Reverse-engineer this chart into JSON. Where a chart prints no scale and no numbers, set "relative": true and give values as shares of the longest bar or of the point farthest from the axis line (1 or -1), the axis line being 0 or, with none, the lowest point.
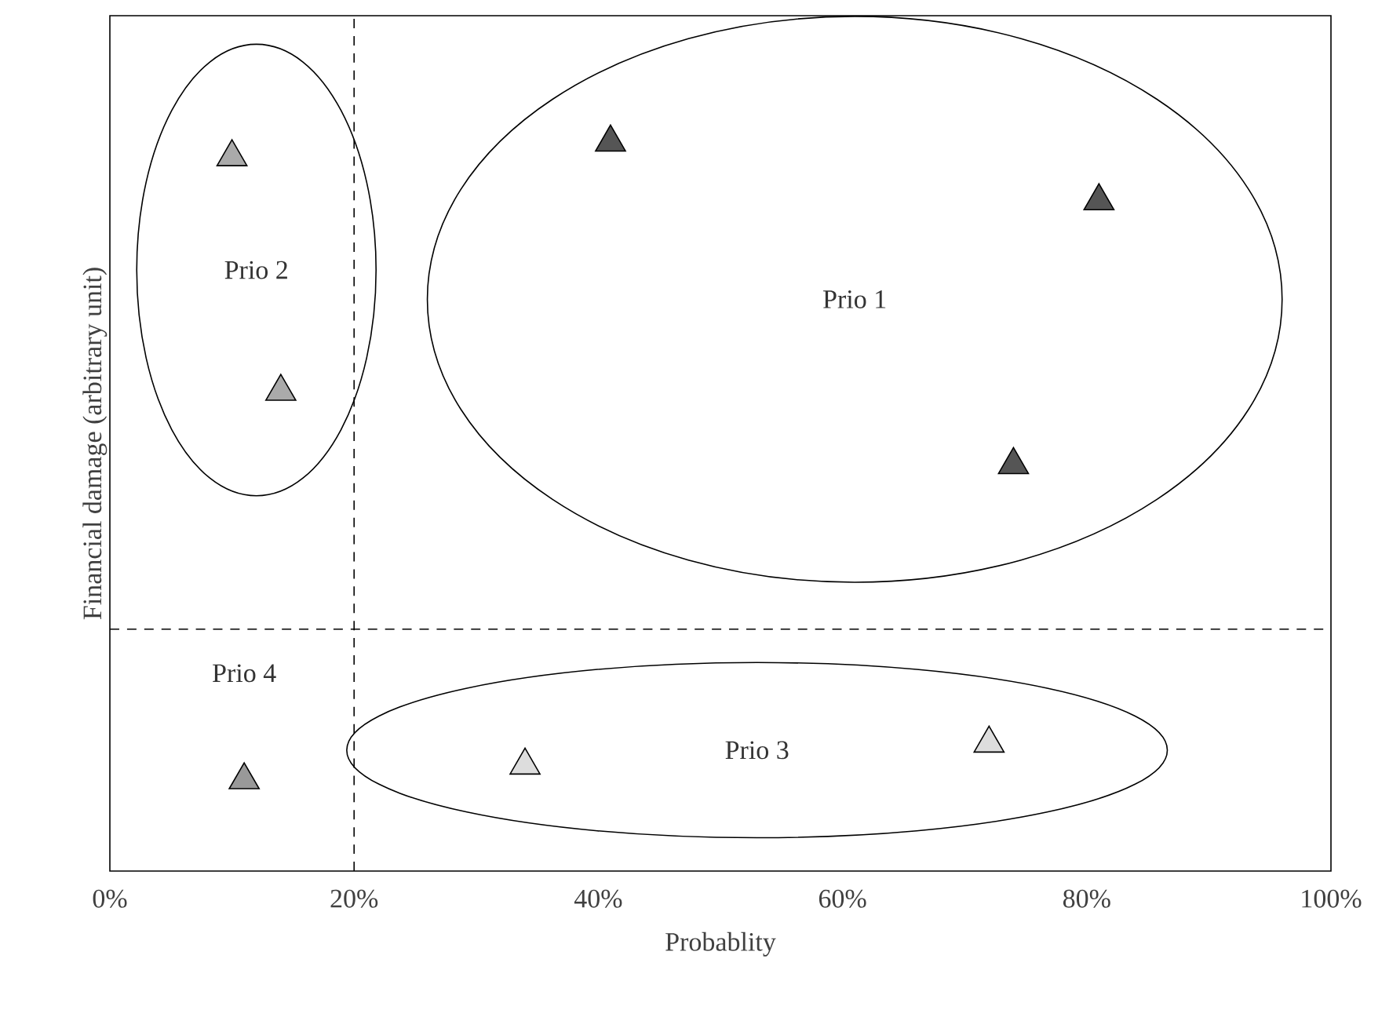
{
  "chart_data": {
    "type": "scatter",
    "xlabel": "Probablity",
    "ylabel": "Financial damage (arbitrary unit)",
    "xlim": [
      0,
      100
    ],
    "xticks": [
      {
        "value": 0,
        "label": "0%"
      },
      {
        "value": 20,
        "label": "20%"
      },
      {
        "value": 40,
        "label": "40%"
      },
      {
        "value": 60,
        "label": "60%"
      },
      {
        "value": 80,
        "label": "80%"
      },
      {
        "value": 100,
        "label": "100%"
      }
    ],
    "relative": true,
    "marker": "triangle",
    "grid": false,
    "series": [
      {
        "color": "#555555",
        "x": [
          41,
          81,
          74
        ],
        "values": [
          1.0,
          0.92,
          0.56
        ]
      },
      {
        "color": "#aaaaaa",
        "x": [
          10,
          14
        ],
        "values": [
          0.98,
          0.66
        ]
      },
      {
        "color": "#dddddd",
        "x": [
          34,
          72
        ],
        "values": [
          0.15,
          0.18
        ]
      },
      {
        "color": "#999999",
        "x": [
          11
        ],
        "values": [
          0.13
        ]
      }
    ],
    "annotations": [
      "Prio 1",
      "Prio 2",
      "Prio 3",
      "Prio 4"
    ],
    "ref_lines": [
      {
        "axis": "x",
        "value": 20,
        "line_style": "dashed"
      },
      {
        "axis": "y",
        "value": 0.33,
        "line_style": "dashed"
      }
    ]
  }
}
